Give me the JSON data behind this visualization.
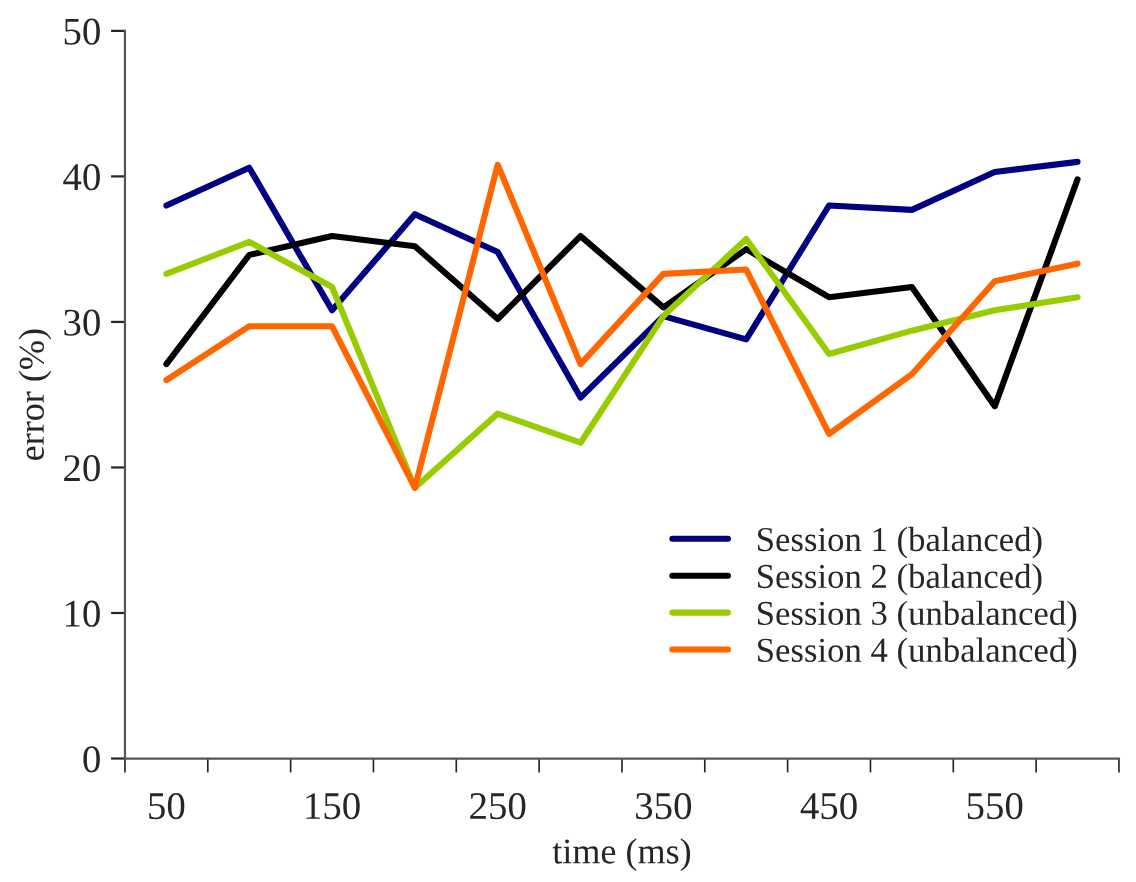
{
  "chart_data": {
    "type": "line",
    "xlabel": "time (ms)",
    "ylabel": "error (%)",
    "categories": [
      "50",
      null,
      "150",
      null,
      "250",
      null,
      "350",
      null,
      "450",
      null,
      "550",
      null
    ],
    "series": [
      {
        "name": "Session 1 (balanced)",
        "color": "#000080",
        "values": [
          38,
          40.6,
          30.8,
          37.4,
          34.8,
          24.8,
          30.4,
          28.8,
          38,
          37.7,
          40.3,
          41
        ]
      },
      {
        "name": "Session 2 (balanced)",
        "color": "#000000",
        "values": [
          27.1,
          34.6,
          35.9,
          35.2,
          30.2,
          35.9,
          31,
          35,
          31.7,
          32.4,
          24.2,
          39.8
        ]
      },
      {
        "name": "Session 3 (unbalanced)",
        "color": "#99cc00",
        "values": [
          33.3,
          35.5,
          32.4,
          18.6,
          23.7,
          21.7,
          30.4,
          35.7,
          27.8,
          29.4,
          30.8,
          31.7
        ]
      },
      {
        "name": "Session 4 (unbalanced)",
        "color": "#ff6600",
        "values": [
          26,
          29.7,
          29.7,
          18.6,
          40.8,
          27.1,
          33.3,
          33.6,
          22.3,
          26.4,
          32.8,
          34
        ]
      }
    ],
    "ylim": [
      0,
      50
    ],
    "yticks": [
      0,
      10,
      20,
      30,
      40,
      50
    ],
    "grid": false,
    "legend": "bottom right",
    "line_style": "solid",
    "marker": "none"
  }
}
